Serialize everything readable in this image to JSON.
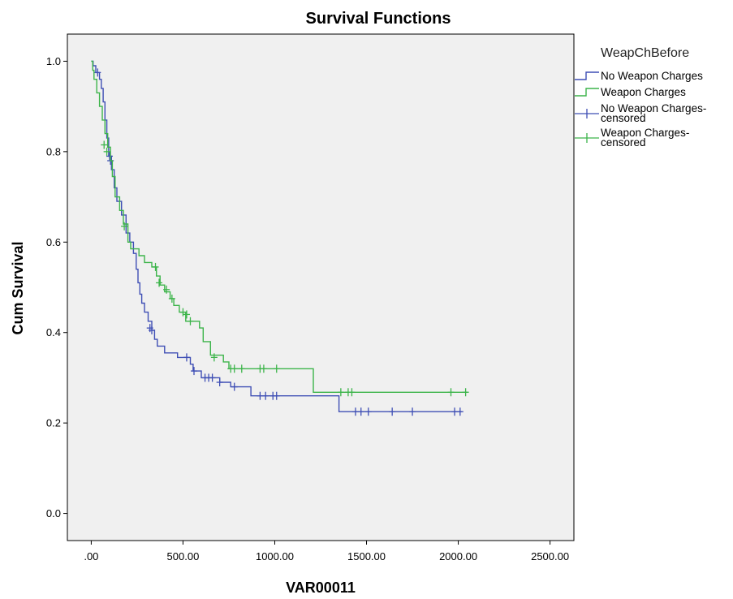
{
  "chart_data": {
    "type": "line",
    "subtype": "kaplan-meier step",
    "title": "Survival Functions",
    "xlabel": "VAR00011",
    "ylabel": "Cum Survival",
    "xlim": [
      -130,
      2630
    ],
    "ylim": [
      -0.06,
      1.06
    ],
    "x_ticks": [
      0,
      500,
      1000,
      1500,
      2000,
      2500
    ],
    "x_tick_labels": [
      ".00",
      "500.00",
      "1000.00",
      "1500.00",
      "2000.00",
      "2500.00"
    ],
    "y_ticks": [
      0.0,
      0.2,
      0.4,
      0.6,
      0.8,
      1.0
    ],
    "y_tick_labels": [
      "0.0",
      "0.2",
      "0.4",
      "0.6",
      "0.8",
      "1.0"
    ],
    "grid": false,
    "plot_background": "#f0f0f0",
    "legend": {
      "title": "WeapChBefore",
      "placement": "right",
      "entries": [
        {
          "label_lines": [
            "No Weapon Charges"
          ],
          "marker": "step",
          "color": "#3f4fb5"
        },
        {
          "label_lines": [
            "Weapon Charges"
          ],
          "marker": "step",
          "color": "#3cb44a"
        },
        {
          "label_lines": [
            "No Weapon Charges-",
            "censored"
          ],
          "marker": "plus",
          "color": "#3f4fb5"
        },
        {
          "label_lines": [
            "Weapon Charges-",
            "censored"
          ],
          "marker": "plus",
          "color": "#3cb44a"
        }
      ]
    },
    "series": [
      {
        "name": "No Weapon Charges",
        "color": "#3f4fb5",
        "steps": [
          [
            0,
            1.0
          ],
          [
            10,
            0.99
          ],
          [
            25,
            0.975
          ],
          [
            45,
            0.96
          ],
          [
            55,
            0.94
          ],
          [
            65,
            0.91
          ],
          [
            75,
            0.87
          ],
          [
            85,
            0.83
          ],
          [
            95,
            0.79
          ],
          [
            110,
            0.76
          ],
          [
            125,
            0.72
          ],
          [
            140,
            0.69
          ],
          [
            165,
            0.66
          ],
          [
            190,
            0.62
          ],
          [
            210,
            0.6
          ],
          [
            230,
            0.575
          ],
          [
            245,
            0.54
          ],
          [
            255,
            0.51
          ],
          [
            265,
            0.485
          ],
          [
            275,
            0.465
          ],
          [
            290,
            0.445
          ],
          [
            310,
            0.425
          ],
          [
            330,
            0.405
          ],
          [
            345,
            0.385
          ],
          [
            360,
            0.37
          ],
          [
            400,
            0.355
          ],
          [
            470,
            0.345
          ],
          [
            540,
            0.33
          ],
          [
            555,
            0.315
          ],
          [
            600,
            0.3
          ],
          [
            700,
            0.29
          ],
          [
            760,
            0.28
          ],
          [
            870,
            0.26
          ],
          [
            1350,
            0.225
          ]
        ],
        "end_x": 2020,
        "censored": [
          [
            35,
            0.975
          ],
          [
            100,
            0.79
          ],
          [
            105,
            0.78
          ],
          [
            320,
            0.41
          ],
          [
            330,
            0.405
          ],
          [
            520,
            0.345
          ],
          [
            560,
            0.315
          ],
          [
            620,
            0.3
          ],
          [
            640,
            0.3
          ],
          [
            660,
            0.3
          ],
          [
            700,
            0.29
          ],
          [
            780,
            0.28
          ],
          [
            920,
            0.26
          ],
          [
            950,
            0.26
          ],
          [
            990,
            0.26
          ],
          [
            1010,
            0.26
          ],
          [
            1440,
            0.225
          ],
          [
            1470,
            0.225
          ],
          [
            1510,
            0.225
          ],
          [
            1640,
            0.225
          ],
          [
            1750,
            0.225
          ],
          [
            1980,
            0.225
          ],
          [
            2010,
            0.225
          ]
        ]
      },
      {
        "name": "Weapon Charges",
        "color": "#3cb44a",
        "steps": [
          [
            0,
            1.0
          ],
          [
            8,
            0.98
          ],
          [
            15,
            0.96
          ],
          [
            30,
            0.93
          ],
          [
            45,
            0.9
          ],
          [
            60,
            0.87
          ],
          [
            75,
            0.84
          ],
          [
            90,
            0.81
          ],
          [
            105,
            0.78
          ],
          [
            115,
            0.745
          ],
          [
            130,
            0.7
          ],
          [
            155,
            0.67
          ],
          [
            175,
            0.64
          ],
          [
            200,
            0.6
          ],
          [
            215,
            0.585
          ],
          [
            260,
            0.57
          ],
          [
            290,
            0.555
          ],
          [
            330,
            0.545
          ],
          [
            355,
            0.525
          ],
          [
            375,
            0.505
          ],
          [
            400,
            0.49
          ],
          [
            430,
            0.475
          ],
          [
            450,
            0.46
          ],
          [
            480,
            0.445
          ],
          [
            515,
            0.425
          ],
          [
            560,
            0.425
          ],
          [
            590,
            0.41
          ],
          [
            610,
            0.38
          ],
          [
            650,
            0.35
          ],
          [
            720,
            0.335
          ],
          [
            750,
            0.32
          ],
          [
            1210,
            0.268
          ]
        ],
        "end_x": 2050,
        "censored": [
          [
            70,
            0.815
          ],
          [
            85,
            0.8
          ],
          [
            180,
            0.635
          ],
          [
            350,
            0.545
          ],
          [
            370,
            0.51
          ],
          [
            410,
            0.495
          ],
          [
            440,
            0.475
          ],
          [
            500,
            0.445
          ],
          [
            520,
            0.44
          ],
          [
            540,
            0.425
          ],
          [
            670,
            0.345
          ],
          [
            760,
            0.32
          ],
          [
            780,
            0.32
          ],
          [
            820,
            0.32
          ],
          [
            920,
            0.32
          ],
          [
            940,
            0.32
          ],
          [
            1010,
            0.32
          ],
          [
            1360,
            0.268
          ],
          [
            1400,
            0.268
          ],
          [
            1420,
            0.268
          ],
          [
            1960,
            0.268
          ],
          [
            2040,
            0.268
          ]
        ]
      }
    ]
  }
}
